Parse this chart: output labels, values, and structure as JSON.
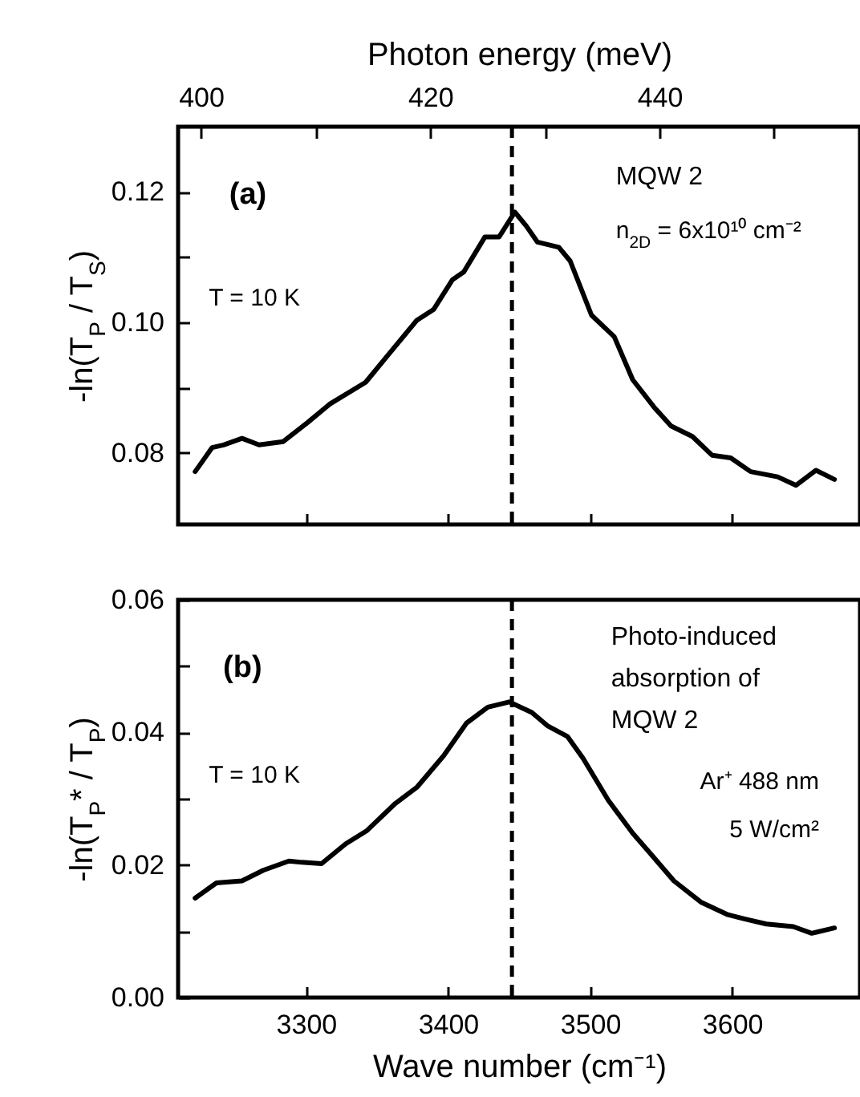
{
  "chart_data": [
    {
      "type": "line",
      "x2label": "Photon energy (meV)",
      "ylabel": "-ln(T$_{P}$ / T$_{S}$)",
      "xlim": [
        3210,
        3690
      ],
      "xticks": [
        3300,
        3400,
        3500,
        3600
      ],
      "x2lim": [
        398.0,
        457.5
      ],
      "x2ticks": [
        400,
        {
          "value": 410,
          "label": null
        },
        420,
        {
          "value": 430,
          "label": null
        },
        440,
        {
          "value": 450,
          "label": null
        }
      ],
      "ylim": [
        0.069,
        0.13
      ],
      "yticks": [
        {
          "value": 0.09,
          "label": null
        },
        0.08,
        {
          "value": 0.1,
          "label": "0.10"
        },
        {
          "value": 0.11,
          "label": null
        },
        0.12
      ],
      "tick_labels": "y",
      "line_style": "solid",
      "x": [
        3222,
        3234,
        3242,
        3255,
        3267,
        3284,
        3301,
        3317,
        3342,
        3359,
        3378,
        3390,
        3403,
        3411,
        3426,
        3436,
        3447,
        3455,
        3463,
        3478,
        3486,
        3501,
        3517,
        3530,
        3545,
        3557,
        3572,
        3586,
        3599,
        3613,
        3632,
        3645,
        3659,
        3672
      ],
      "series": [
        {
          "color": "#000000",
          "values": [
            0.0771,
            0.0808,
            0.0812,
            0.0822,
            0.0812,
            0.0817,
            0.0846,
            0.0875,
            0.0908,
            0.0953,
            0.1003,
            0.102,
            0.1065,
            0.1077,
            0.1131,
            0.1131,
            0.1169,
            0.1148,
            0.1123,
            0.1115,
            0.1094,
            0.1011,
            0.0978,
            0.0912,
            0.087,
            0.0841,
            0.0825,
            0.0796,
            0.0792,
            0.0771,
            0.0763,
            0.075,
            0.0773,
            0.0759
          ]
        }
      ],
      "ref_lines": [
        {
          "axis": "x",
          "value": 3445,
          "line_style": "dashed",
          "color": "#000000"
        }
      ],
      "annotations": [
        "(a)",
        "MQW 2",
        "n$_{2D}$ = 6x10¹⁰ cm⁻²",
        "T = 10 K"
      ]
    },
    {
      "type": "line",
      "xlabel": "Wave number (cm⁻¹)",
      "ylabel": "-ln(T$_{P}$* / T$_{P}$)",
      "xlim": [
        3210,
        3690
      ],
      "xticks": [
        3300,
        3400,
        3500,
        3600
      ],
      "ylim": [
        0,
        0.06
      ],
      "yticks": [
        {
          "value": 0,
          "label": "0.00"
        },
        {
          "value": 0.01,
          "label": null
        },
        0.02,
        {
          "value": 0.03,
          "label": null
        },
        0.04,
        {
          "value": 0.05,
          "label": null
        },
        0.06
      ],
      "line_style": "solid",
      "x": [
        3222,
        3237,
        3255,
        3270,
        3288,
        3297,
        3311,
        3328,
        3343,
        3363,
        3378,
        3397,
        3413,
        3428,
        3443,
        3459,
        3470,
        3484,
        3495,
        3513,
        3530,
        3543,
        3559,
        3578,
        3597,
        3608,
        3624,
        3643,
        3656,
        3672
      ],
      "series": [
        {
          "color": "#000000",
          "values": [
            0.015,
            0.0173,
            0.0176,
            0.0192,
            0.0206,
            0.0204,
            0.0202,
            0.0232,
            0.0252,
            0.0293,
            0.0317,
            0.0365,
            0.0414,
            0.0438,
            0.0446,
            0.043,
            0.041,
            0.0394,
            0.0361,
            0.0297,
            0.0248,
            0.0216,
            0.0176,
            0.0144,
            0.0125,
            0.0119,
            0.0111,
            0.0107,
            0.0097,
            0.0105
          ]
        }
      ],
      "ref_lines": [
        {
          "axis": "x",
          "value": 3445,
          "line_style": "dashed",
          "color": "#000000"
        }
      ],
      "annotations": [
        "(b)",
        "Photo-induced\nabsorption of\nMQW 2",
        "Ar⁺ 488 nm",
        "5 W/cm²",
        "T = 10 K"
      ]
    }
  ]
}
